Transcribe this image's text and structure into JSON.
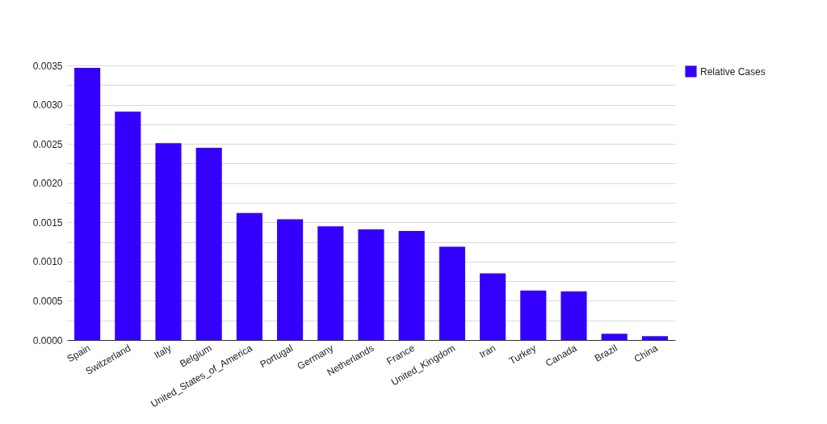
{
  "chart_data": {
    "type": "bar",
    "categories": [
      "Spain",
      "Switzerland",
      "Italy",
      "Belgium",
      "United_States_of_America",
      "Portugal",
      "Germany",
      "Netherlands",
      "France",
      "United_Kingdom",
      "Iran",
      "Turkey",
      "Canada",
      "Brazil",
      "China"
    ],
    "series": [
      {
        "name": "Relative Cases",
        "color": "#3300ff",
        "values": [
          0.00347,
          0.00291,
          0.00251,
          0.00245,
          0.00162,
          0.00154,
          0.00145,
          0.00141,
          0.00139,
          0.00119,
          0.00085,
          0.00063,
          0.00062,
          8e-05,
          5e-05
        ]
      }
    ],
    "ylim": [
      0,
      0.0035
    ],
    "yticks": [
      {
        "value": 0,
        "label": "0.0000"
      },
      {
        "value": 0.00025,
        "label": null
      },
      {
        "value": 0.0005,
        "label": "0.0005"
      },
      {
        "value": 0.00075,
        "label": null
      },
      {
        "value": 0.001,
        "label": "0.0010"
      },
      {
        "value": 0.00125,
        "label": null
      },
      {
        "value": 0.0015,
        "label": "0.0015"
      },
      {
        "value": 0.00175,
        "label": null
      },
      {
        "value": 0.002,
        "label": "0.0020"
      },
      {
        "value": 0.00225,
        "label": null
      },
      {
        "value": 0.0025,
        "label": "0.0025"
      },
      {
        "value": 0.00275,
        "label": null
      },
      {
        "value": 0.003,
        "label": "0.0030"
      },
      {
        "value": 0.00325,
        "label": null
      },
      0.0035
    ],
    "grid": true,
    "legend": "top right"
  }
}
